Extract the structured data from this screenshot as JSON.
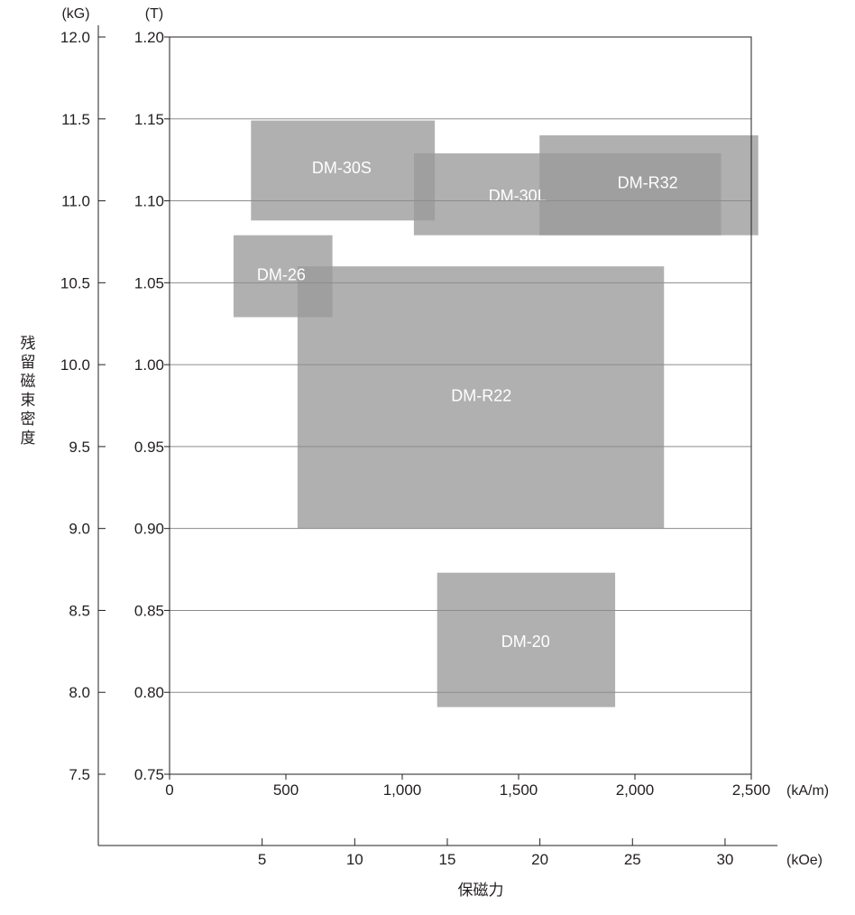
{
  "chart_data": {
    "type": "range-box",
    "title": "",
    "xlabel": "保磁力",
    "ylabel": "残留磁束密度",
    "x_primary": {
      "unit": "(kA/m)",
      "range": [
        0,
        2500
      ],
      "ticks": [
        0,
        500,
        1000,
        1500,
        2000,
        2500
      ],
      "tick_labels": [
        "0",
        "500",
        "1,000",
        "1,500",
        "2,000",
        "2,500"
      ]
    },
    "x_secondary": {
      "unit": "(kOe)",
      "ticks": [
        5,
        10,
        15,
        20,
        25,
        30
      ],
      "tick_labels": [
        "5",
        "10",
        "15",
        "20",
        "25",
        "30"
      ]
    },
    "y_primary": {
      "unit": "(T)",
      "range": [
        0.75,
        1.2
      ],
      "ticks": [
        0.75,
        0.8,
        0.85,
        0.9,
        0.95,
        1.0,
        1.05,
        1.1,
        1.15,
        1.2
      ],
      "tick_labels": [
        "0.75",
        "0.80",
        "0.85",
        "0.90",
        "0.95",
        "1.00",
        "1.05",
        "1.10",
        "1.15",
        "1.20"
      ]
    },
    "y_secondary": {
      "unit": "(kG)",
      "ticks": [
        7.5,
        8.0,
        8.5,
        9.0,
        9.5,
        10.0,
        10.5,
        11.0,
        11.5,
        12.0
      ],
      "tick_labels": [
        "7.5",
        "8.0",
        "8.5",
        "9.0",
        "9.5",
        "10.0",
        "10.5",
        "11.0",
        "11.5",
        "12.0"
      ]
    },
    "grid": "horizontal",
    "regions": [
      {
        "name": "DM-30S",
        "x": [
          350,
          1140
        ],
        "y": [
          1.088,
          1.149
        ],
        "label_pos": [
          740,
          1.12
        ]
      },
      {
        "name": "DM-30L",
        "x": [
          1050,
          2370
        ],
        "y": [
          1.079,
          1.129
        ],
        "label_pos": [
          1495,
          1.103
        ]
      },
      {
        "name": "DM-R32",
        "x": [
          1590,
          2530
        ],
        "y": [
          1.079,
          1.14
        ],
        "label_pos": [
          2055,
          1.111
        ]
      },
      {
        "name": "DM-26",
        "x": [
          275,
          700
        ],
        "y": [
          1.029,
          1.079
        ],
        "label_pos": [
          480,
          1.055
        ]
      },
      {
        "name": "DM-R22",
        "x": [
          550,
          2125
        ],
        "y": [
          0.9,
          1.06
        ],
        "label_pos": [
          1340,
          0.981
        ]
      },
      {
        "name": "DM-20",
        "x": [
          1150,
          1915
        ],
        "y": [
          0.791,
          0.873
        ],
        "label_pos": [
          1530,
          0.831
        ]
      }
    ],
    "colors": {
      "fill": "#9a9a9a",
      "fill_opacity": 0.78,
      "grid": "#8c8c8c",
      "axis": "#231f20"
    }
  }
}
